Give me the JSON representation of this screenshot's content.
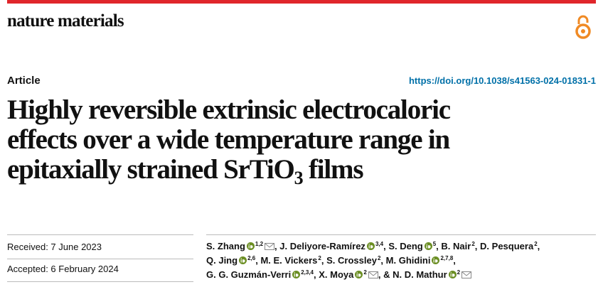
{
  "header": {
    "journal": "nature materials",
    "article_type": "Article",
    "doi": "https://doi.org/10.1038/s41563-024-01831-1"
  },
  "title": {
    "line1": "Highly reversible extrinsic electrocaloric",
    "line2": "effects over a wide temperature range in",
    "line3_main": "epitaxially strained SrTiO",
    "line3_subscript": "3",
    "line3_end": " films"
  },
  "dates": {
    "received": "Received: 7 June 2023",
    "accepted": "Accepted: 6 February 2024"
  },
  "separator": ",",
  "conjunction": "&",
  "author_lines": [
    [
      {
        "name": "S. Zhang",
        "affiliations": "1,2",
        "orcid": true,
        "email": true
      },
      {
        "name": "J. Deliyore-Ramírez",
        "affiliations": "3,4",
        "orcid": true,
        "email": false
      },
      {
        "name": "S. Deng",
        "affiliations": "5",
        "orcid": true,
        "email": false
      },
      {
        "name": "B. Nair",
        "affiliations": "2",
        "orcid": false,
        "email": false
      },
      {
        "name": "D. Pesquera",
        "affiliations": "2",
        "orcid": false,
        "email": false
      }
    ],
    [
      {
        "name": "Q. Jing",
        "affiliations": "2,6",
        "orcid": true,
        "email": false
      },
      {
        "name": "M. E. Vickers",
        "affiliations": "2",
        "orcid": false,
        "email": false
      },
      {
        "name": "S. Crossley",
        "affiliations": "2",
        "orcid": false,
        "email": false
      },
      {
        "name": "M. Ghidini",
        "affiliations": "2,7,8",
        "orcid": true,
        "email": false
      }
    ],
    [
      {
        "name": "G. G. Guzmán-Verri",
        "affiliations": "2,3,4",
        "orcid": true,
        "email": false
      },
      {
        "name": "X. Moya",
        "affiliations": "2",
        "orcid": true,
        "email": true
      },
      {
        "name": "N. D. Mathur",
        "affiliations": "2",
        "orcid": true,
        "email": true
      }
    ]
  ]
}
